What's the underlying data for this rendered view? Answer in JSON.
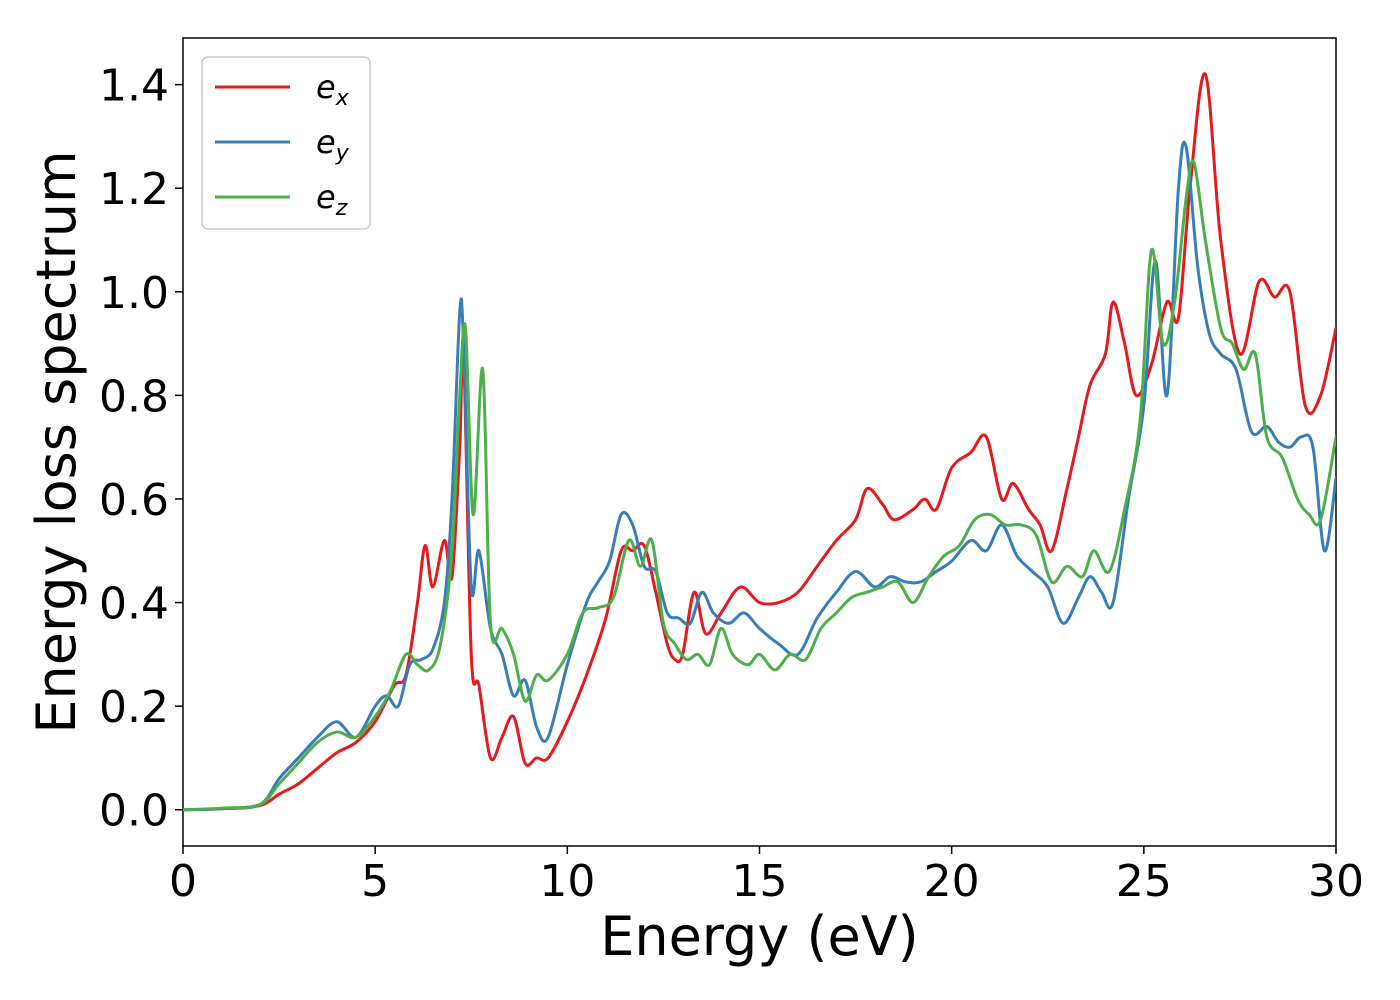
{
  "chart_data": {
    "type": "line",
    "title": "",
    "xlabel": "Energy (eV)",
    "ylabel": "Energy loss spectrum",
    "xlim": [
      0,
      30
    ],
    "ylim": [
      -0.07,
      1.49
    ],
    "xticks": [
      0,
      5,
      10,
      15,
      20,
      25,
      30
    ],
    "xtick_labels": [
      "0",
      "5",
      "10",
      "15",
      "20",
      "25",
      "30"
    ],
    "yticks": [
      0.0,
      0.2,
      0.4,
      0.6,
      0.8,
      1.0,
      1.2,
      1.4
    ],
    "ytick_labels": [
      "0.0",
      "0.2",
      "0.4",
      "0.6",
      "0.8",
      "1.0",
      "1.2",
      "1.4"
    ],
    "grid": false,
    "legend_position": "top-left",
    "series": [
      {
        "name": "e",
        "subscript": "x",
        "color": "#e41a1c",
        "x": [
          0,
          1,
          2,
          2.5,
          3,
          3.5,
          4,
          4.5,
          5,
          5.5,
          5.8,
          6.1,
          6.3,
          6.5,
          6.8,
          7.0,
          7.2,
          7.3,
          7.5,
          7.7,
          8.0,
          8.3,
          8.6,
          8.9,
          9.2,
          9.5,
          10,
          10.5,
          11,
          11.4,
          11.7,
          12,
          12.3,
          12.6,
          12.8,
          13.0,
          13.3,
          13.6,
          14,
          14.5,
          15,
          15.5,
          16,
          16.5,
          17,
          17.5,
          17.8,
          18.2,
          18.5,
          19,
          19.3,
          19.6,
          20,
          20.5,
          20.9,
          21.3,
          21.6,
          22,
          22.3,
          22.6,
          23,
          23.3,
          23.6,
          24,
          24.2,
          24.5,
          24.8,
          25.2,
          25.6,
          25.9,
          26.2,
          26.6,
          27,
          27.5,
          28,
          28.4,
          28.8,
          29.2,
          29.6,
          30
        ],
        "y": [
          0.0,
          0.002,
          0.008,
          0.03,
          0.05,
          0.08,
          0.11,
          0.13,
          0.17,
          0.24,
          0.26,
          0.4,
          0.51,
          0.43,
          0.52,
          0.45,
          0.7,
          0.88,
          0.3,
          0.24,
          0.1,
          0.14,
          0.18,
          0.09,
          0.1,
          0.1,
          0.17,
          0.26,
          0.37,
          0.5,
          0.5,
          0.51,
          0.42,
          0.32,
          0.29,
          0.3,
          0.42,
          0.34,
          0.38,
          0.43,
          0.4,
          0.4,
          0.42,
          0.47,
          0.52,
          0.56,
          0.62,
          0.59,
          0.56,
          0.58,
          0.6,
          0.58,
          0.66,
          0.69,
          0.72,
          0.6,
          0.63,
          0.58,
          0.55,
          0.5,
          0.62,
          0.72,
          0.82,
          0.88,
          0.98,
          0.9,
          0.8,
          0.86,
          0.98,
          0.95,
          1.2,
          1.42,
          1.1,
          0.88,
          1.02,
          0.99,
          1.0,
          0.78,
          0.8,
          0.93
        ]
      },
      {
        "name": "e",
        "subscript": "y",
        "color": "#377eb8",
        "x": [
          0,
          1,
          2,
          2.5,
          3,
          3.5,
          4,
          4.5,
          5,
          5.3,
          5.6,
          5.9,
          6.2,
          6.5,
          6.8,
          7.0,
          7.2,
          7.3,
          7.5,
          7.7,
          8.0,
          8.3,
          8.6,
          8.9,
          9.2,
          9.5,
          10,
          10.5,
          10.8,
          11.1,
          11.4,
          11.7,
          12,
          12.3,
          12.6,
          12.9,
          13.2,
          13.5,
          13.8,
          14.2,
          14.6,
          15,
          15.5,
          16,
          16.5,
          17,
          17.5,
          18,
          18.4,
          18.8,
          19.2,
          19.6,
          20,
          20.5,
          20.9,
          21.3,
          21.7,
          22.1,
          22.5,
          22.9,
          23.3,
          23.6,
          23.9,
          24.2,
          24.6,
          25,
          25.3,
          25.6,
          25.9,
          26.1,
          26.4,
          26.7,
          27.0,
          27.4,
          27.8,
          28.2,
          28.5,
          28.8,
          29.1,
          29.4,
          29.7,
          30
        ],
        "y": [
          0.0,
          0.002,
          0.01,
          0.06,
          0.1,
          0.14,
          0.17,
          0.14,
          0.2,
          0.22,
          0.2,
          0.28,
          0.29,
          0.31,
          0.4,
          0.6,
          0.96,
          0.9,
          0.43,
          0.5,
          0.35,
          0.3,
          0.22,
          0.25,
          0.16,
          0.14,
          0.28,
          0.4,
          0.44,
          0.48,
          0.57,
          0.55,
          0.47,
          0.46,
          0.38,
          0.37,
          0.36,
          0.42,
          0.38,
          0.36,
          0.38,
          0.35,
          0.32,
          0.3,
          0.37,
          0.42,
          0.46,
          0.43,
          0.45,
          0.44,
          0.44,
          0.46,
          0.48,
          0.52,
          0.5,
          0.55,
          0.49,
          0.46,
          0.43,
          0.36,
          0.41,
          0.45,
          0.42,
          0.4,
          0.6,
          0.78,
          1.06,
          0.8,
          1.2,
          1.28,
          1.05,
          0.92,
          0.88,
          0.85,
          0.73,
          0.74,
          0.71,
          0.7,
          0.72,
          0.7,
          0.5,
          0.64
        ]
      },
      {
        "name": "e",
        "subscript": "z",
        "color": "#4daf4a",
        "x": [
          0,
          1,
          2,
          2.5,
          3,
          3.5,
          4,
          4.5,
          5,
          5.4,
          5.8,
          6.1,
          6.4,
          6.7,
          7.0,
          7.2,
          7.35,
          7.55,
          7.8,
          8.0,
          8.3,
          8.6,
          8.9,
          9.2,
          9.5,
          10,
          10.4,
          10.8,
          11.2,
          11.6,
          11.9,
          12.2,
          12.5,
          12.8,
          13.1,
          13.4,
          13.7,
          14.0,
          14.3,
          14.7,
          15.0,
          15.4,
          15.8,
          16.2,
          16.6,
          17.0,
          17.4,
          17.8,
          18.2,
          18.6,
          19.0,
          19.4,
          19.8,
          20.2,
          20.6,
          21.0,
          21.4,
          21.8,
          22.2,
          22.6,
          23.0,
          23.4,
          23.7,
          24.1,
          24.5,
          24.9,
          25.2,
          25.5,
          25.8,
          26.1,
          26.3,
          26.6,
          27.0,
          27.3,
          27.6,
          27.9,
          28.2,
          28.6,
          29.0,
          29.3,
          29.6,
          30
        ],
        "y": [
          0.0,
          0.003,
          0.01,
          0.05,
          0.09,
          0.13,
          0.15,
          0.14,
          0.18,
          0.23,
          0.3,
          0.28,
          0.27,
          0.32,
          0.5,
          0.8,
          0.93,
          0.57,
          0.85,
          0.36,
          0.35,
          0.3,
          0.21,
          0.26,
          0.25,
          0.3,
          0.38,
          0.39,
          0.41,
          0.52,
          0.47,
          0.52,
          0.36,
          0.32,
          0.29,
          0.3,
          0.28,
          0.35,
          0.3,
          0.28,
          0.3,
          0.27,
          0.3,
          0.29,
          0.35,
          0.38,
          0.41,
          0.42,
          0.43,
          0.44,
          0.4,
          0.45,
          0.49,
          0.51,
          0.56,
          0.57,
          0.55,
          0.55,
          0.53,
          0.44,
          0.47,
          0.45,
          0.5,
          0.46,
          0.58,
          0.75,
          1.08,
          0.9,
          0.98,
          1.18,
          1.25,
          1.1,
          0.93,
          0.9,
          0.85,
          0.88,
          0.72,
          0.68,
          0.6,
          0.57,
          0.56,
          0.72
        ]
      }
    ]
  }
}
